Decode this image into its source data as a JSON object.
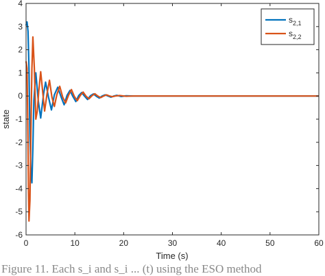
{
  "caption": "Figure 11. Each s_i and s_i ... (t) using the ESO method",
  "chart_data": {
    "type": "line",
    "title": "",
    "xlabel": "Time (s)",
    "ylabel": "state",
    "xlim": [
      0,
      60
    ],
    "ylim": [
      -6,
      4
    ],
    "xticks": [
      0,
      10,
      20,
      30,
      40,
      50,
      60
    ],
    "yticks": [
      4,
      3,
      2,
      1,
      0,
      -1,
      -2,
      -3,
      -4,
      -5,
      -6
    ],
    "grid": false,
    "legend_position": "top-right",
    "series": [
      {
        "name_base": "s",
        "name_sub": "2,1",
        "color": "#0072BD",
        "x": [
          0,
          0.2,
          0.4,
          0.6,
          0.8,
          1.0,
          1.2,
          1.4,
          1.6,
          2.0,
          2.5,
          3.0,
          3.6,
          4.0,
          4.6,
          5.2,
          5.8,
          6.5,
          7.2,
          7.8,
          8.4,
          9.0,
          9.6,
          10.2,
          10.8,
          11.4,
          12.0,
          12.6,
          13.2,
          13.8,
          14.4,
          15.0,
          15.6,
          16.2,
          16.8,
          17.4,
          18.0,
          18.6,
          19.5,
          20.5,
          22,
          60
        ],
        "y": [
          3.05,
          3.2,
          2.8,
          1.2,
          -1.8,
          -3.4,
          -3.75,
          -2.2,
          -0.2,
          1.0,
          -0.2,
          -0.95,
          0.1,
          0.6,
          -0.05,
          -0.6,
          0.05,
          0.38,
          -0.05,
          -0.38,
          0.03,
          0.24,
          -0.02,
          -0.24,
          0.02,
          0.15,
          -0.01,
          -0.15,
          0.01,
          0.09,
          -0.01,
          -0.09,
          0.0,
          0.05,
          0.0,
          -0.05,
          0.0,
          0.03,
          -0.02,
          0.01,
          0.0,
          0.0
        ]
      },
      {
        "name_base": "s",
        "name_sub": "2,2",
        "color": "#D95319",
        "x": [
          0,
          0.2,
          0.4,
          0.5,
          0.6,
          0.8,
          1.0,
          1.2,
          1.4,
          1.7,
          2.0,
          2.3,
          2.6,
          3.0,
          3.4,
          3.8,
          4.3,
          4.8,
          5.3,
          5.8,
          6.3,
          6.9,
          7.5,
          8.1,
          8.7,
          9.3,
          9.9,
          10.5,
          11.1,
          11.7,
          12.3,
          12.9,
          13.5,
          14.1,
          14.7,
          15.3,
          15.9,
          16.5,
          17.1,
          17.7,
          18.3,
          19.2,
          20.5,
          22,
          60
        ],
        "y": [
          1.5,
          1.2,
          -2.0,
          -4.2,
          -5.4,
          -4.5,
          -1.5,
          1.2,
          2.55,
          1.2,
          -1.0,
          -0.65,
          0.2,
          1.05,
          0.2,
          -0.65,
          0.1,
          0.68,
          -0.05,
          -0.45,
          0.05,
          0.42,
          -0.04,
          -0.3,
          0.03,
          0.28,
          -0.02,
          -0.2,
          0.02,
          0.17,
          -0.01,
          -0.12,
          0.01,
          0.1,
          0.0,
          -0.07,
          0.0,
          0.05,
          0.0,
          -0.03,
          0.0,
          0.02,
          -0.01,
          0.0,
          0.0
        ]
      }
    ]
  }
}
